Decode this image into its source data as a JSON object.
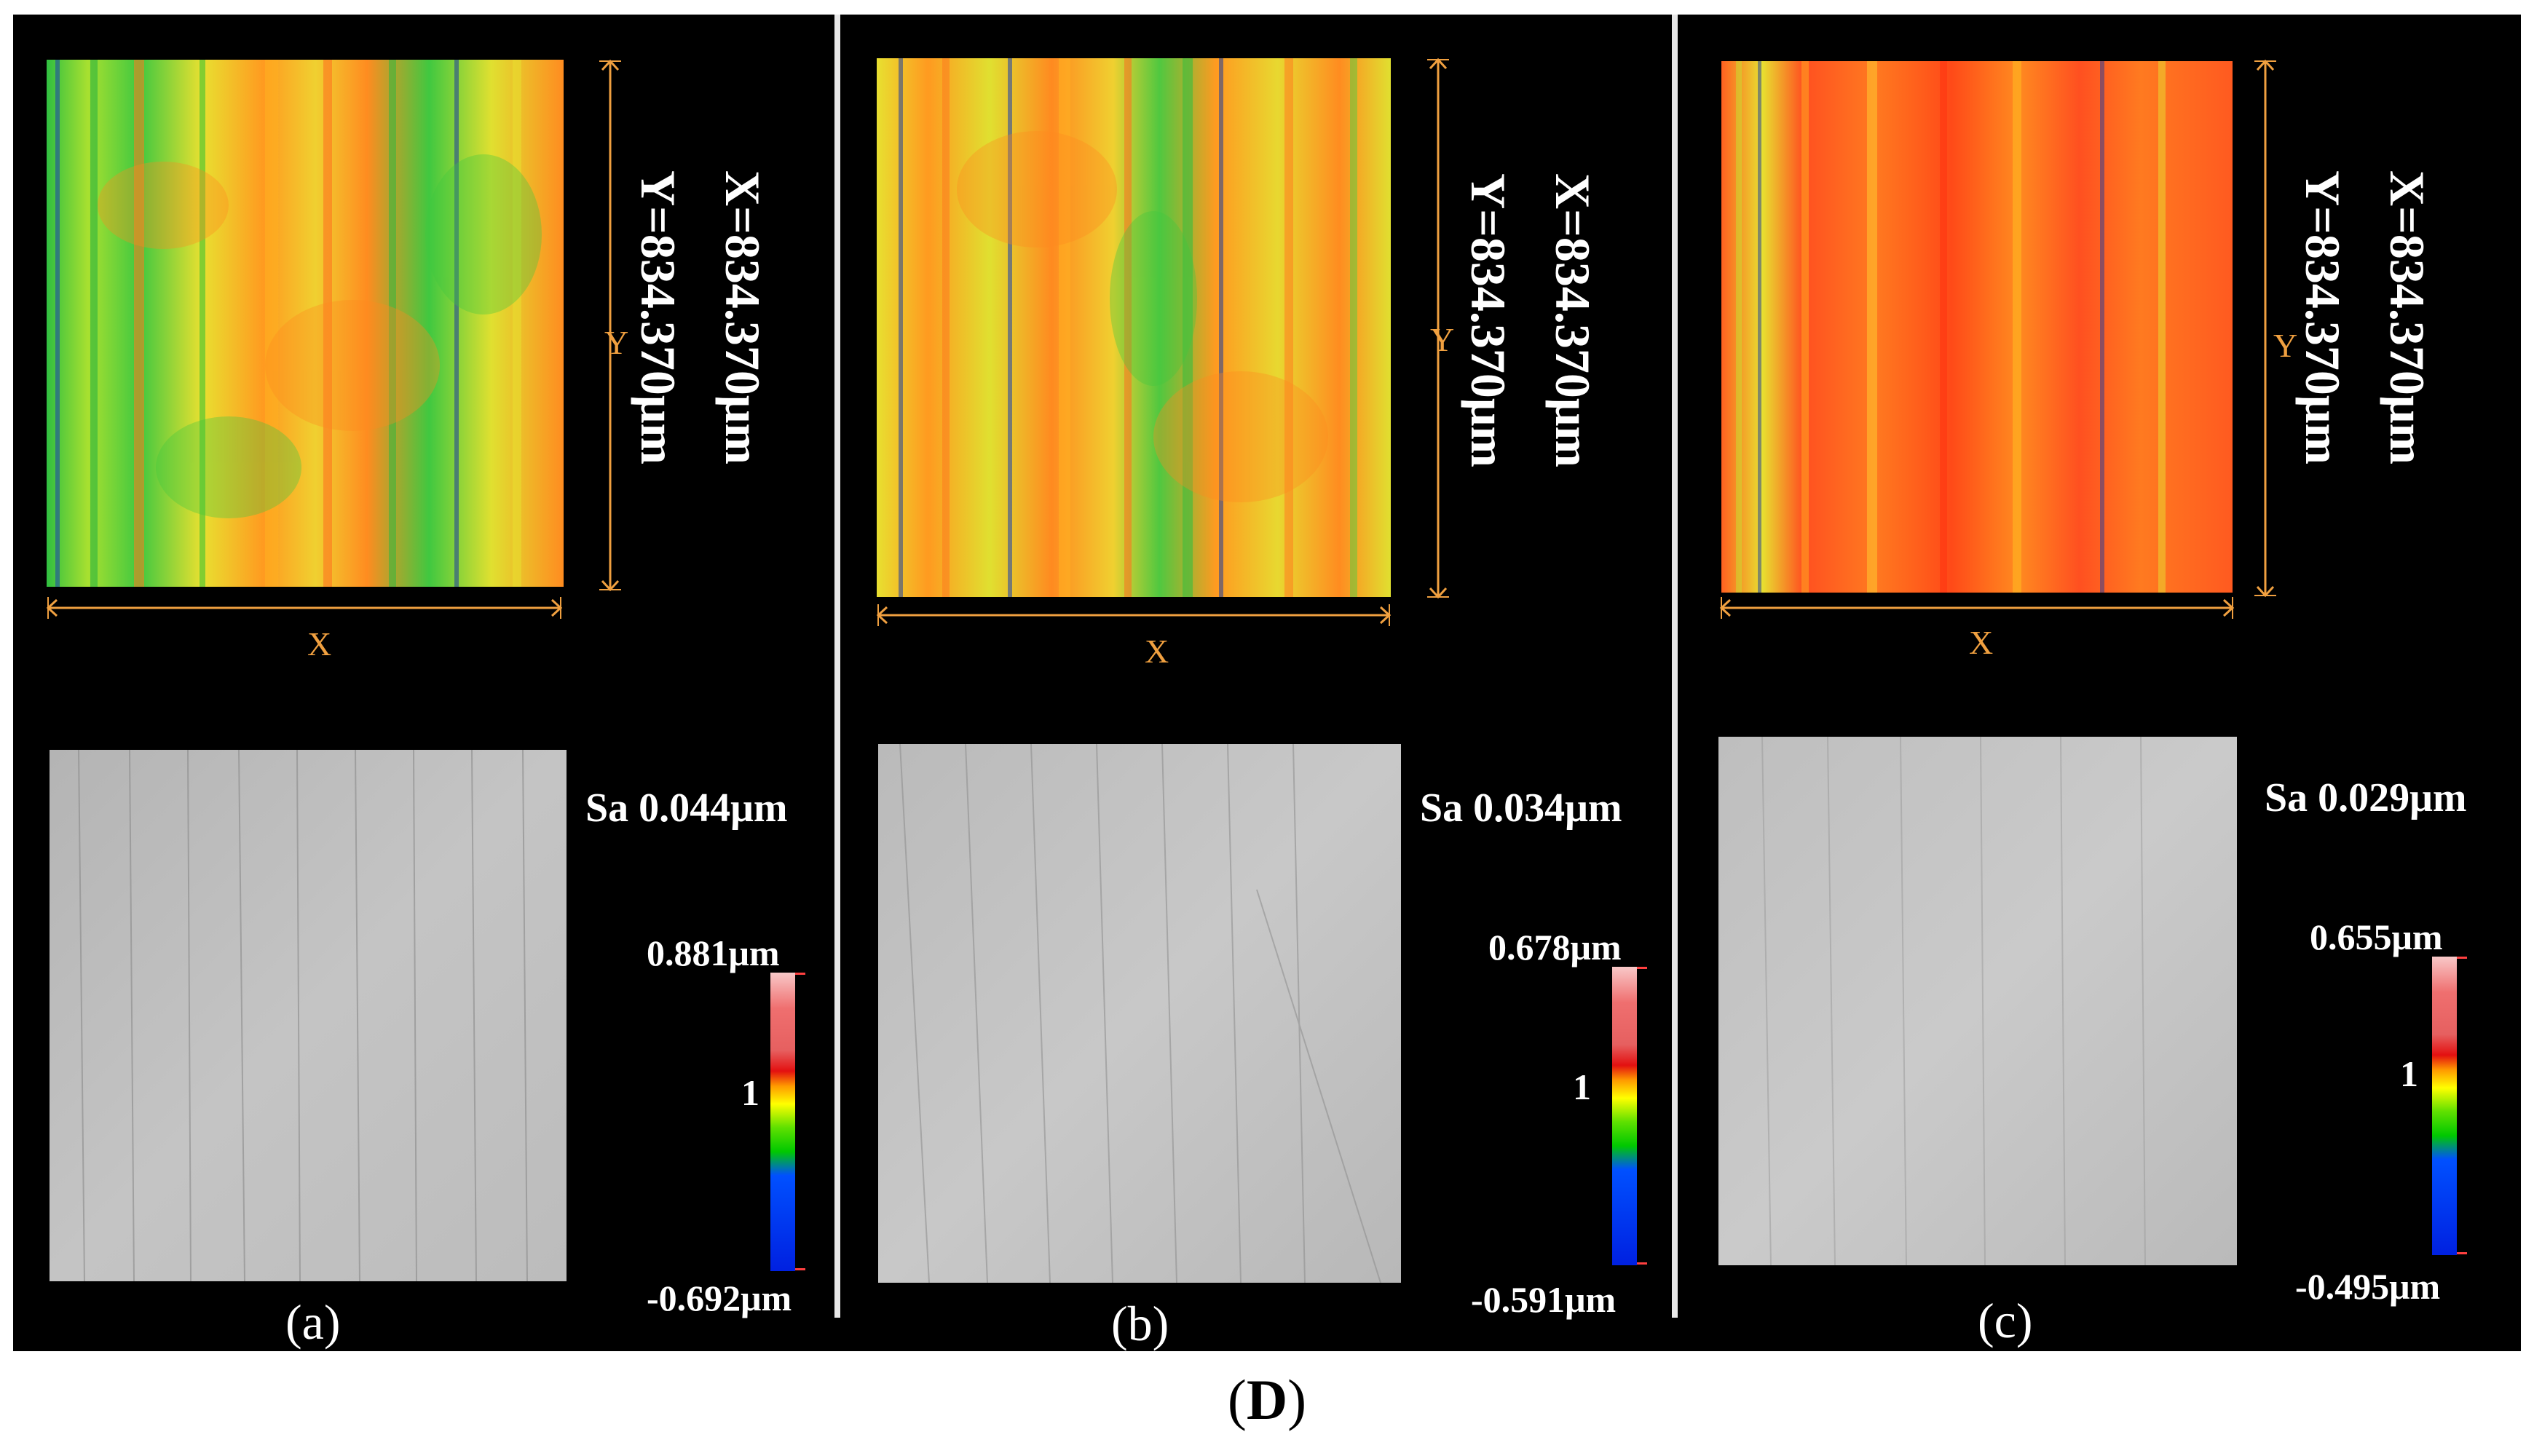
{
  "figure_label": "D",
  "caption": {
    "open": "(",
    "letter": "D",
    "close": ")"
  },
  "colors": {
    "background": "#000000",
    "axis_annotation": "#f0a040",
    "text": "#ffffff",
    "divider": "#e8e8e8"
  },
  "panels": [
    {
      "id": "a",
      "label": "(a)",
      "x_dim": "X=834.370μm",
      "y_dim": "Y=834.370μm",
      "x_axis": "X",
      "y_axis": "Y",
      "sa": "Sa 0.044μm",
      "cb_max": "0.881μm",
      "cb_mid": "1",
      "cb_min": "-0.692μm"
    },
    {
      "id": "b",
      "label": "(b)",
      "x_dim": "X=834.370μm",
      "y_dim": "Y=834.370μm",
      "x_axis": "X",
      "y_axis": "Y",
      "sa": "Sa 0.034μm",
      "cb_max": "0.678μm",
      "cb_mid": "1",
      "cb_min": "-0.591μm"
    },
    {
      "id": "c",
      "label": "(c)",
      "x_dim": "X=834.370μm",
      "y_dim": "Y=834.370μm",
      "x_axis": "X",
      "y_axis": "Y",
      "sa": "Sa 0.029μm",
      "cb_max": "0.655μm",
      "cb_mid": "1",
      "cb_min": "-0.495μm"
    }
  ]
}
